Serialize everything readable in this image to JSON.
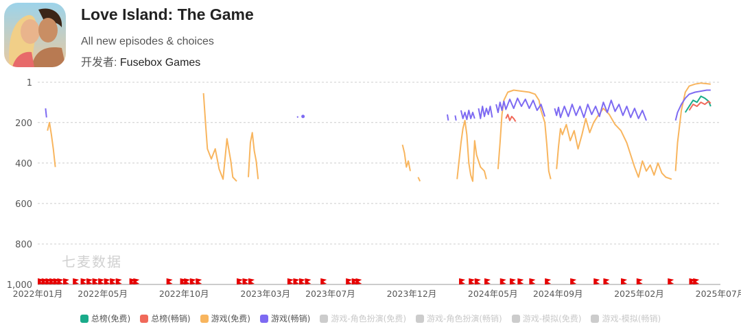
{
  "app": {
    "title": "Love Island: The Game",
    "subtitle": "All new episodes & choices",
    "developer_label": "开发者: ",
    "developer_name": "Fusebox Games",
    "icon": "app-icon-couple"
  },
  "watermark": "七麦数据",
  "colors": {
    "total_free": "#1aab8a",
    "total_grossing": "#f0695a",
    "games_free": "#f8b55e",
    "games_grossing": "#7d6af2",
    "disabled": "#cccccc",
    "event_marker": "#e60000",
    "grid": "#cccccc"
  },
  "legend": [
    {
      "label": "总榜(免费)",
      "color": "#1aab8a",
      "active": true
    },
    {
      "label": "总榜(畅销)",
      "color": "#f0695a",
      "active": true
    },
    {
      "label": "游戏(免费)",
      "color": "#f8b55e",
      "active": true
    },
    {
      "label": "游戏(畅销)",
      "color": "#7d6af2",
      "active": true
    },
    {
      "label": "游戏-角色扮演(免费)",
      "color": "#cccccc",
      "active": false
    },
    {
      "label": "游戏-角色扮演(畅销)",
      "color": "#cccccc",
      "active": false
    },
    {
      "label": "游戏-模拟(免费)",
      "color": "#cccccc",
      "active": false
    },
    {
      "label": "游戏-模拟(畅销)",
      "color": "#cccccc",
      "active": false
    }
  ],
  "chart_data": {
    "type": "line",
    "title": "",
    "xlabel": "",
    "ylabel": "",
    "y_inverted": true,
    "ylim": [
      1,
      1000
    ],
    "yticks": [
      1,
      200,
      400,
      600,
      800,
      1000
    ],
    "ytick_labels": [
      "1",
      "200",
      "400",
      "600",
      "800",
      "1,000"
    ],
    "xlim": [
      2022.0,
      2025.5
    ],
    "xticks": [
      2022.0,
      2022.333,
      2022.75,
      2023.167,
      2023.5,
      2023.917,
      2024.333,
      2024.667,
      2025.083,
      2025.5
    ],
    "xtick_labels": [
      "2022年01月",
      "2022年05月",
      "2022年10月",
      "2023年03月",
      "2023年07月",
      "2023年12月",
      "2024年05月",
      "2024年09月",
      "2025年02月",
      "2025年07月"
    ],
    "grid": true,
    "series": [
      {
        "name": "游戏(免费)",
        "segments": [
          [
            [
              2022.05,
              240
            ],
            [
              2022.06,
              200
            ],
            [
              2022.07,
              260
            ],
            [
              2022.08,
              330
            ],
            [
              2022.09,
              420
            ]
          ],
          [
            [
              2022.85,
              55
            ],
            [
              2022.86,
              200
            ],
            [
              2022.87,
              330
            ],
            [
              2022.89,
              380
            ],
            [
              2022.91,
              330
            ],
            [
              2022.93,
              430
            ],
            [
              2022.95,
              480
            ],
            [
              2022.97,
              280
            ],
            [
              2022.99,
              390
            ],
            [
              2023.0,
              470
            ],
            [
              2023.02,
              490
            ]
          ],
          [
            [
              2023.08,
              470
            ],
            [
              2023.09,
              300
            ],
            [
              2023.1,
              250
            ],
            [
              2023.11,
              340
            ],
            [
              2023.12,
              390
            ],
            [
              2023.13,
              480
            ]
          ],
          [
            [
              2023.87,
              310
            ],
            [
              2023.88,
              350
            ],
            [
              2023.89,
              420
            ],
            [
              2023.9,
              390
            ],
            [
              2023.91,
              440
            ]
          ],
          [
            [
              2023.95,
              470
            ],
            [
              2023.96,
              490
            ]
          ],
          [
            [
              2024.15,
              480
            ],
            [
              2024.17,
              300
            ],
            [
              2024.18,
              230
            ],
            [
              2024.19,
              190
            ],
            [
              2024.2,
              260
            ],
            [
              2024.21,
              400
            ],
            [
              2024.22,
              460
            ],
            [
              2024.23,
              490
            ],
            [
              2024.24,
              290
            ],
            [
              2024.25,
              360
            ],
            [
              2024.27,
              420
            ],
            [
              2024.29,
              440
            ],
            [
              2024.3,
              480
            ]
          ],
          [
            [
              2024.36,
              430
            ],
            [
              2024.37,
              300
            ],
            [
              2024.38,
              160
            ],
            [
              2024.39,
              90
            ],
            [
              2024.41,
              50
            ],
            [
              2024.44,
              40
            ],
            [
              2024.48,
              45
            ],
            [
              2024.52,
              50
            ],
            [
              2024.55,
              60
            ],
            [
              2024.57,
              90
            ],
            [
              2024.58,
              140
            ],
            [
              2024.6,
              200
            ],
            [
              2024.61,
              310
            ],
            [
              2024.62,
              440
            ],
            [
              2024.63,
              480
            ]
          ],
          [
            [
              2024.66,
              430
            ],
            [
              2024.67,
              320
            ],
            [
              2024.68,
              230
            ],
            [
              2024.69,
              260
            ],
            [
              2024.71,
              210
            ],
            [
              2024.73,
              290
            ],
            [
              2024.75,
              240
            ],
            [
              2024.77,
              330
            ],
            [
              2024.79,
              260
            ],
            [
              2024.81,
              180
            ],
            [
              2024.83,
              250
            ],
            [
              2024.85,
              200
            ],
            [
              2024.87,
              170
            ],
            [
              2024.9,
              130
            ],
            [
              2024.93,
              160
            ],
            [
              2024.96,
              210
            ],
            [
              2024.99,
              240
            ],
            [
              2025.02,
              300
            ],
            [
              2025.04,
              360
            ],
            [
              2025.06,
              420
            ],
            [
              2025.08,
              470
            ],
            [
              2025.1,
              390
            ],
            [
              2025.12,
              440
            ],
            [
              2025.14,
              410
            ],
            [
              2025.16,
              460
            ],
            [
              2025.18,
              400
            ],
            [
              2025.2,
              450
            ],
            [
              2025.22,
              470
            ],
            [
              2025.25,
              480
            ]
          ],
          [
            [
              2025.27,
              440
            ],
            [
              2025.28,
              300
            ],
            [
              2025.3,
              140
            ],
            [
              2025.32,
              50
            ],
            [
              2025.34,
              20
            ],
            [
              2025.37,
              10
            ],
            [
              2025.4,
              5
            ],
            [
              2025.43,
              8
            ],
            [
              2025.45,
              10
            ]
          ]
        ]
      },
      {
        "name": "游戏(畅销)",
        "segments": [
          [
            [
              2022.04,
              130
            ],
            [
              2022.045,
              175
            ]
          ],
          [
            [
              2023.33,
              170
            ],
            [
              2023.335,
              175
            ]
          ],
          [
            [
              2024.1,
              160
            ],
            [
              2024.105,
              190
            ]
          ],
          [
            [
              2024.14,
              165
            ],
            [
              2024.145,
              190
            ]
          ],
          [
            [
              2024.17,
              140
            ],
            [
              2024.18,
              180
            ],
            [
              2024.19,
              150
            ],
            [
              2024.2,
              185
            ],
            [
              2024.21,
              140
            ],
            [
              2024.22,
              180
            ],
            [
              2024.23,
              150
            ],
            [
              2024.24,
              180
            ]
          ],
          [
            [
              2024.26,
              130
            ],
            [
              2024.27,
              180
            ],
            [
              2024.28,
              120
            ],
            [
              2024.29,
              170
            ],
            [
              2024.3,
              130
            ],
            [
              2024.31,
              160
            ],
            [
              2024.32,
              120
            ],
            [
              2024.33,
              175
            ]
          ],
          [
            [
              2024.35,
              110
            ],
            [
              2024.36,
              150
            ],
            [
              2024.37,
              100
            ],
            [
              2024.38,
              140
            ],
            [
              2024.39,
              95
            ],
            [
              2024.4,
              135
            ],
            [
              2024.42,
              85
            ],
            [
              2024.44,
              130
            ],
            [
              2024.46,
              80
            ],
            [
              2024.48,
              120
            ],
            [
              2024.5,
              85
            ],
            [
              2024.52,
              130
            ],
            [
              2024.54,
              90
            ],
            [
              2024.56,
              140
            ],
            [
              2024.58,
              110
            ],
            [
              2024.6,
              170
            ]
          ],
          [
            [
              2024.65,
              130
            ],
            [
              2024.66,
              165
            ],
            [
              2024.67,
              125
            ],
            [
              2024.68,
              175
            ],
            [
              2024.7,
              120
            ],
            [
              2024.72,
              170
            ],
            [
              2024.74,
              110
            ],
            [
              2024.76,
              165
            ],
            [
              2024.78,
              120
            ],
            [
              2024.8,
              175
            ],
            [
              2024.82,
              110
            ],
            [
              2024.84,
              160
            ],
            [
              2024.86,
              120
            ],
            [
              2024.88,
              170
            ],
            [
              2024.9,
              100
            ],
            [
              2024.92,
              150
            ],
            [
              2024.94,
              90
            ],
            [
              2024.96,
              145
            ],
            [
              2024.98,
              110
            ],
            [
              2025.0,
              165
            ],
            [
              2025.02,
              120
            ],
            [
              2025.04,
              175
            ],
            [
              2025.06,
              130
            ],
            [
              2025.08,
              180
            ],
            [
              2025.1,
              140
            ],
            [
              2025.12,
              190
            ]
          ],
          [
            [
              2025.27,
              190
            ],
            [
              2025.28,
              150
            ],
            [
              2025.3,
              110
            ],
            [
              2025.32,
              80
            ],
            [
              2025.34,
              60
            ],
            [
              2025.37,
              50
            ],
            [
              2025.4,
              45
            ],
            [
              2025.43,
              40
            ],
            [
              2025.45,
              40
            ]
          ]
        ]
      },
      {
        "name": "总榜(免费)",
        "segments": [
          [
            [
              2025.32,
              150
            ],
            [
              2025.34,
              120
            ],
            [
              2025.36,
              90
            ],
            [
              2025.38,
              100
            ],
            [
              2025.4,
              70
            ],
            [
              2025.42,
              80
            ],
            [
              2025.44,
              95
            ],
            [
              2025.45,
              120
            ]
          ]
        ]
      },
      {
        "name": "总榜(畅销)",
        "segments": [
          [
            [
              2024.4,
              180
            ],
            [
              2024.41,
              160
            ],
            [
              2024.42,
              190
            ],
            [
              2024.43,
              170
            ],
            [
              2024.44,
              180
            ],
            [
              2024.45,
              195
            ]
          ],
          [
            [
              2025.34,
              140
            ],
            [
              2025.36,
              110
            ],
            [
              2025.38,
              120
            ],
            [
              2025.4,
              100
            ],
            [
              2025.42,
              110
            ],
            [
              2025.44,
              95
            ],
            [
              2025.45,
              105
            ]
          ]
        ]
      }
    ],
    "points": [
      {
        "series": "游戏(畅销)",
        "x": 2023.36,
        "y": 170
      }
    ],
    "event_markers": [
      2022.0,
      2022.02,
      2022.04,
      2022.06,
      2022.08,
      2022.1,
      2022.13,
      2022.18,
      2022.22,
      2022.25,
      2022.28,
      2022.31,
      2022.34,
      2022.37,
      2022.4,
      2022.47,
      2022.49,
      2022.66,
      2022.73,
      2022.75,
      2022.78,
      2022.81,
      2023.02,
      2023.05,
      2023.08,
      2023.28,
      2023.31,
      2023.34,
      2023.37,
      2023.45,
      2023.58,
      2023.61,
      2023.63,
      2024.16,
      2024.21,
      2024.24,
      2024.29,
      2024.37,
      2024.42,
      2024.46,
      2024.52,
      2024.6,
      2024.73,
      2024.85,
      2024.9,
      2024.99,
      2025.07,
      2025.23,
      2025.34,
      2025.36
    ]
  }
}
